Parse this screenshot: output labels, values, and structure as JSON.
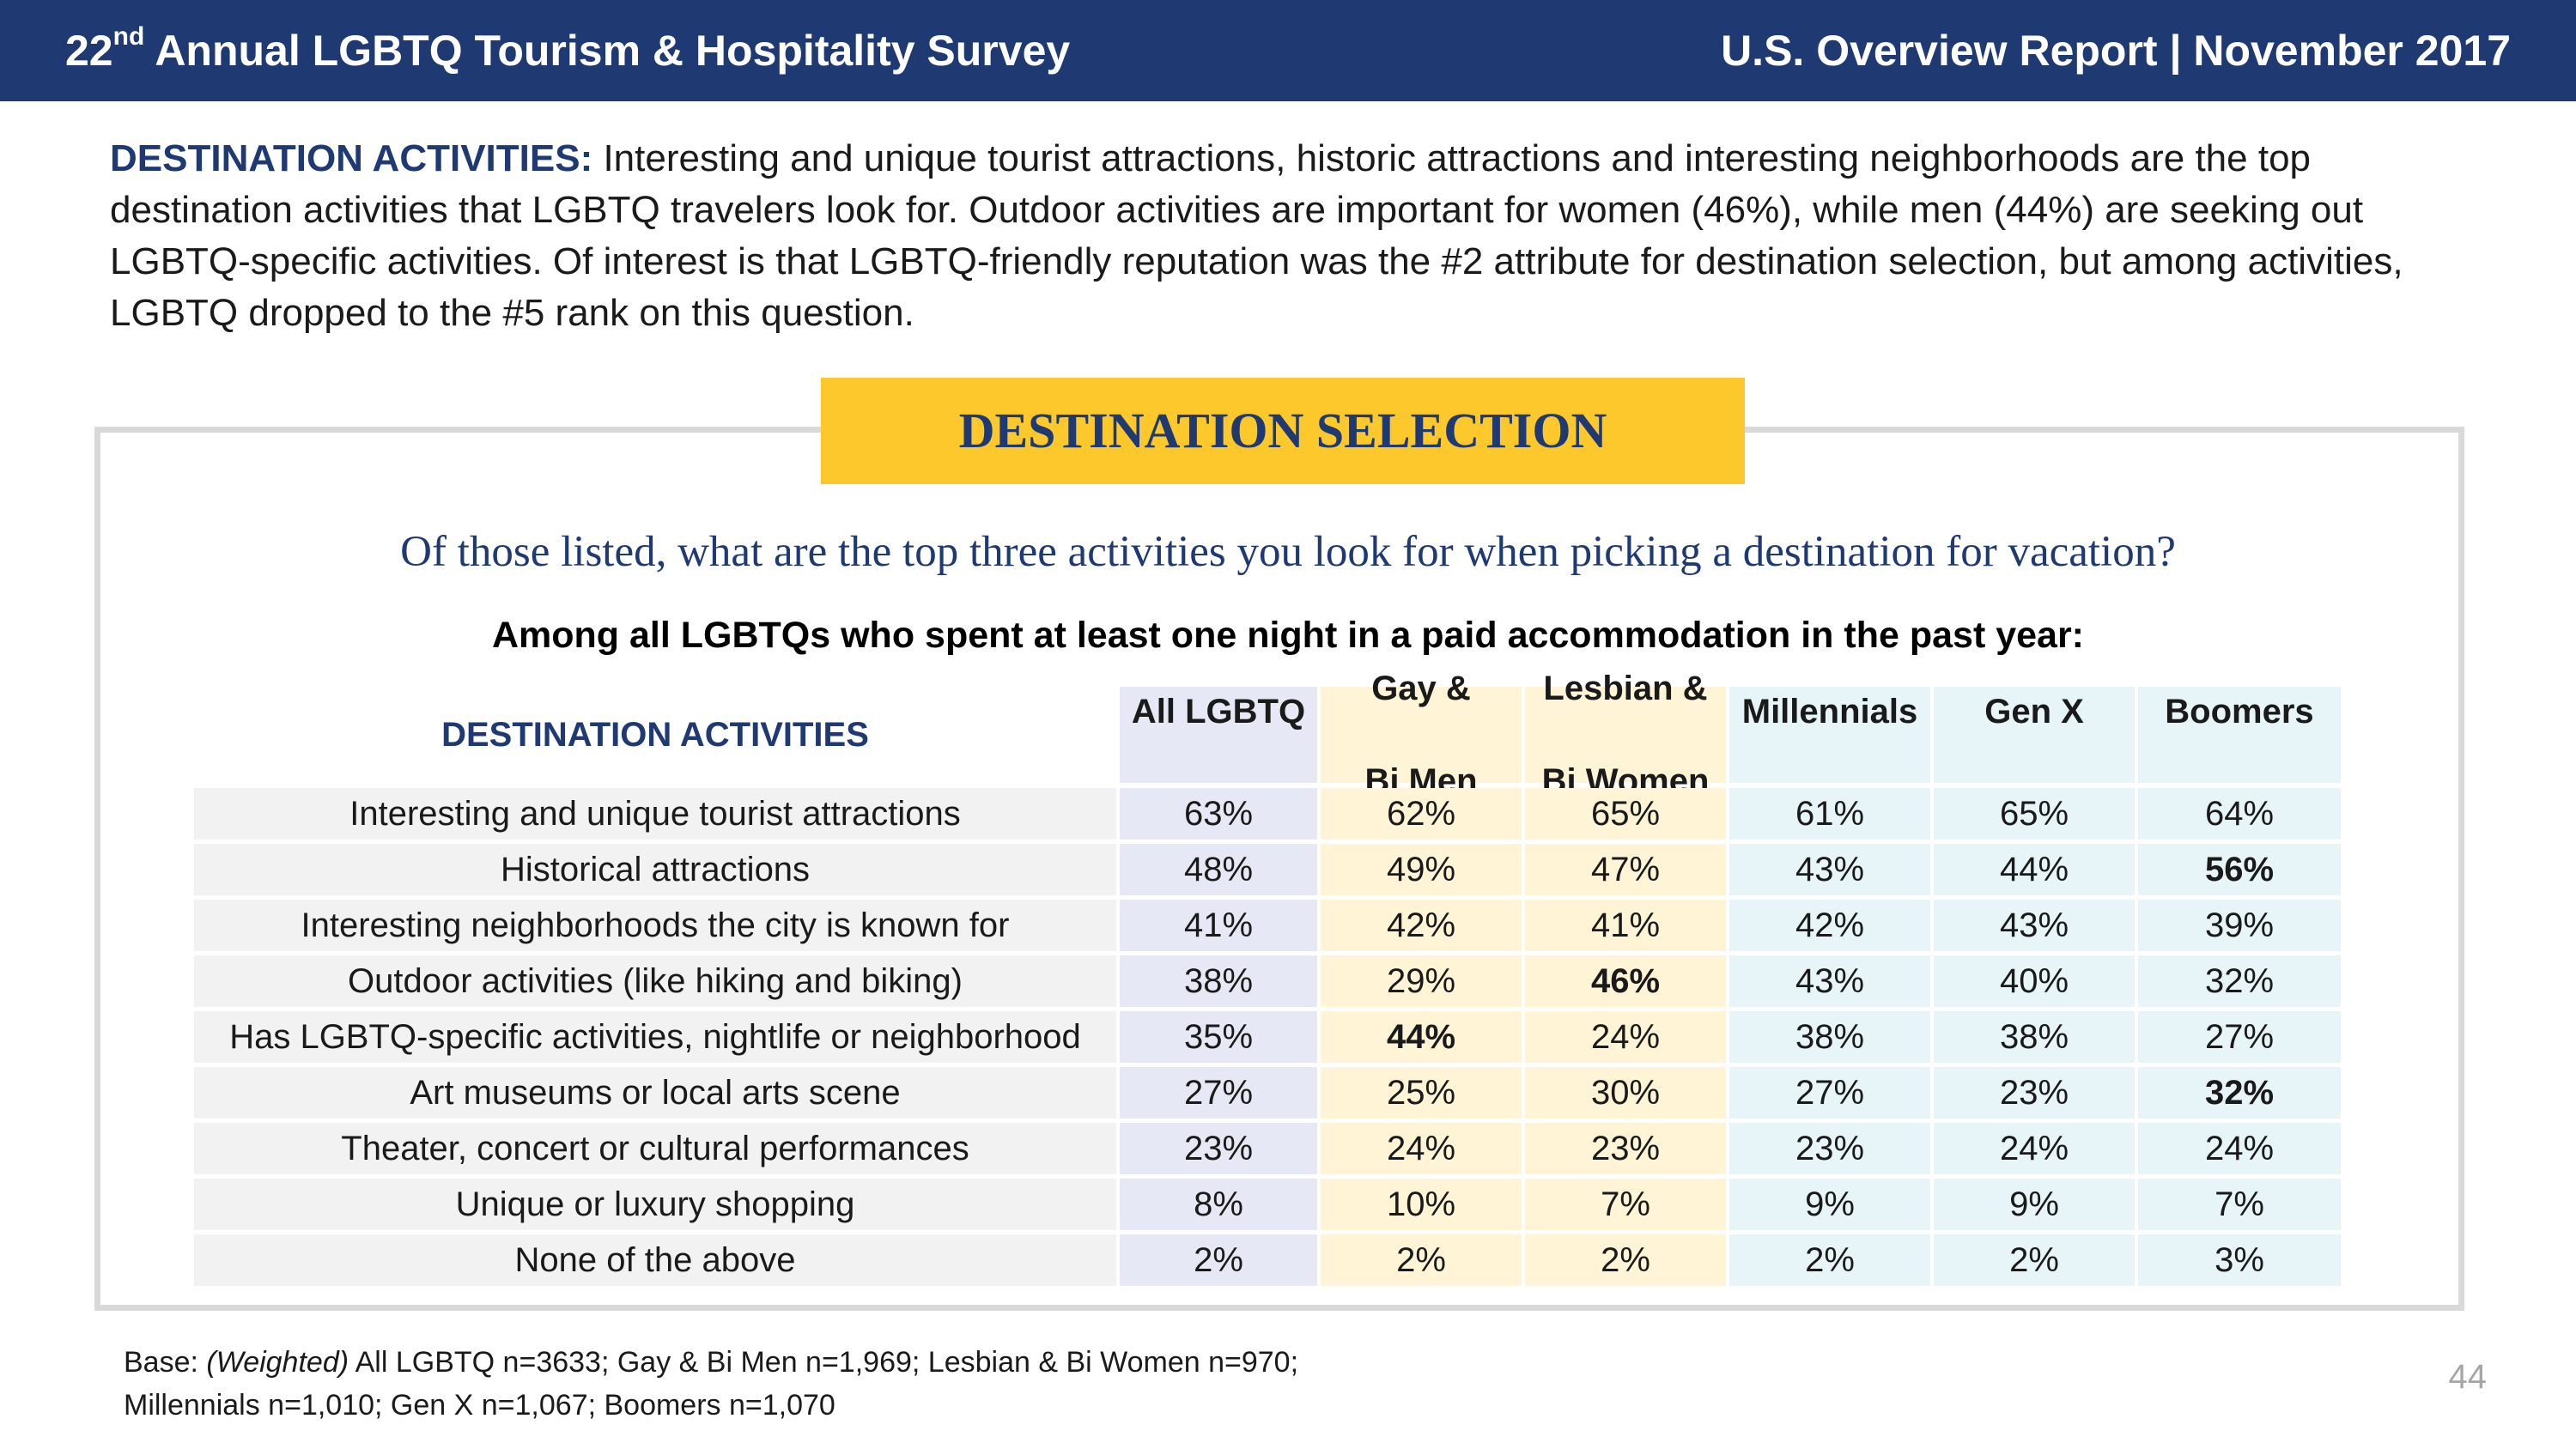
{
  "header": {
    "left_prefix": "22",
    "left_sup": "nd",
    "left_rest": " Annual LGBTQ Tourism & Hospitality Survey",
    "right": "U.S. Overview Report | November 2017"
  },
  "intro": {
    "lead": "DESTINATION ACTIVITIES:",
    "text": " Interesting and unique tourist attractions, historic attractions and interesting neighborhoods are the top destination activities that LGBTQ travelers look for. Outdoor activities are important for women (46%), while men (44%) are seeking out LGBTQ-specific activities. Of interest is that LGBTQ-friendly reputation was the #2 attribute for destination selection, but among activities, LGBTQ dropped to the #5 rank on this question."
  },
  "banner": "DESTINATION SELECTION",
  "question": "Of those listed, what are the top three activities you look for when picking a destination for vacation?",
  "subquestion": "Among all LGBTQs who spent at least one night in a paid accommodation in the past year:",
  "table": {
    "row_header": "DESTINATION ACTIVITIES",
    "columns": [
      {
        "line1": "All LGBTQ",
        "line2": ""
      },
      {
        "line1": "Gay &",
        "line2": "Bi Men"
      },
      {
        "line1": "Lesbian &",
        "line2": "Bi Women"
      },
      {
        "line1": "Millennials",
        "line2": ""
      },
      {
        "line1": "Gen X",
        "line2": ""
      },
      {
        "line1": "Boomers",
        "line2": ""
      }
    ],
    "rows": [
      {
        "label": "Interesting and unique tourist attractions",
        "values": [
          "63%",
          "62%",
          "65%",
          "61%",
          "65%",
          "64%"
        ],
        "bold": []
      },
      {
        "label": "Historical attractions",
        "values": [
          "48%",
          "49%",
          "47%",
          "43%",
          "44%",
          "56%"
        ],
        "bold": [
          5
        ]
      },
      {
        "label": "Interesting neighborhoods the city is known for",
        "values": [
          "41%",
          "42%",
          "41%",
          "42%",
          "43%",
          "39%"
        ],
        "bold": []
      },
      {
        "label": "Outdoor activities (like hiking and biking)",
        "values": [
          "38%",
          "29%",
          "46%",
          "43%",
          "40%",
          "32%"
        ],
        "bold": [
          2
        ]
      },
      {
        "label": "Has LGBTQ-specific activities, nightlife or neighborhood",
        "values": [
          "35%",
          "44%",
          "24%",
          "38%",
          "38%",
          "27%"
        ],
        "bold": [
          1
        ]
      },
      {
        "label": "Art museums or local arts scene",
        "values": [
          "27%",
          "25%",
          "30%",
          "27%",
          "23%",
          "32%"
        ],
        "bold": [
          5
        ]
      },
      {
        "label": "Theater, concert or cultural performances",
        "values": [
          "23%",
          "24%",
          "23%",
          "23%",
          "24%",
          "24%"
        ],
        "bold": []
      },
      {
        "label": "Unique or luxury shopping",
        "values": [
          "8%",
          "10%",
          "7%",
          "9%",
          "9%",
          "7%"
        ],
        "bold": []
      },
      {
        "label": "None of the above",
        "values": [
          "2%",
          "2%",
          "2%",
          "2%",
          "2%",
          "3%"
        ],
        "bold": []
      }
    ]
  },
  "base": {
    "label": "Base: ",
    "weighted": "(Weighted)",
    "line1_rest": " All LGBTQ n=3633; Gay & Bi Men n=1,969; Lesbian & Bi Women n=970;",
    "line2": "Millennials n=1,010; Gen X n=1,067; Boomers n=1,070"
  },
  "page_number": "44"
}
